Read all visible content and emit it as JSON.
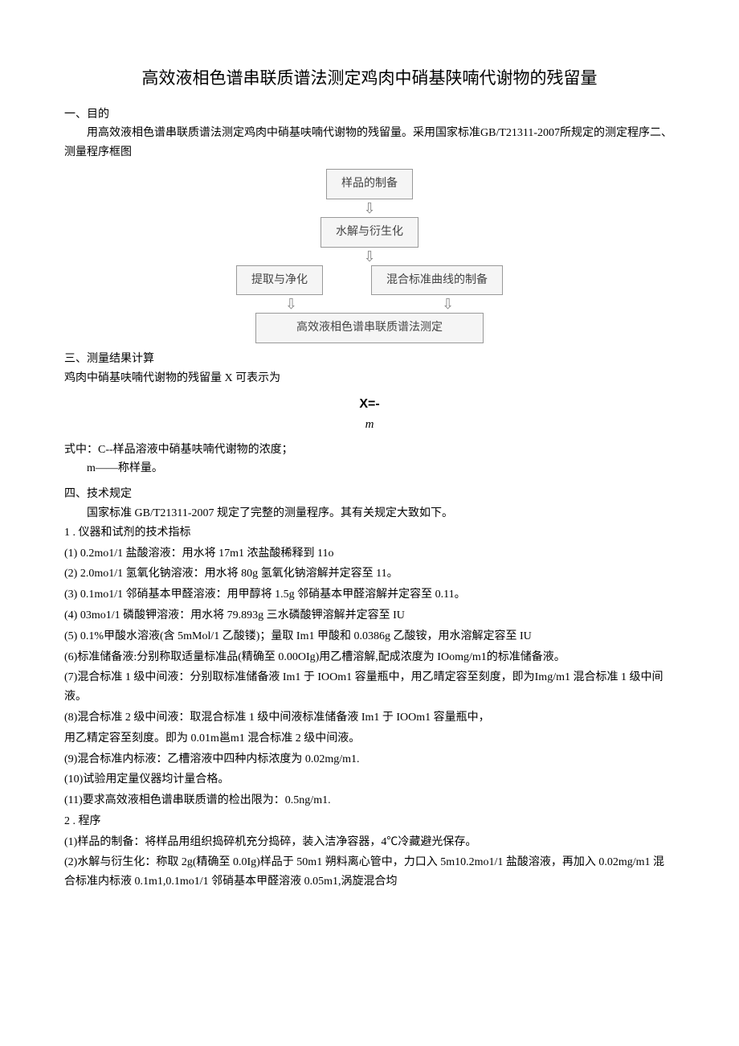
{
  "title": "高效液相色谱串联质谱法测定鸡肉中硝基陕喃代谢物的残留量",
  "sec1": {
    "hdr": "一、目的",
    "p1": "用高效液相色谱串联质谱法测定鸡肉中硝基呋喃代谢物的残留量。采用国家标准GB/T21311-2007所规定的测定程序二、测量程序框图"
  },
  "flow": {
    "b1": "样品的制备",
    "b2": "水解与衍生化",
    "b3": "提取与净化",
    "b4": "混合标准曲线的制备",
    "b5": "高效液相色谱串联质谱法测定",
    "arrow": "⇩"
  },
  "sec3": {
    "hdr": "三、测量结果计算",
    "p1": "鸡肉中硝基呋喃代谢物的残留量 X 可表示为",
    "formula_x": "X=-",
    "formula_m": "m",
    "p2": "式中：C--样品溶液中硝基呋喃代谢物的浓度；",
    "p3": "m——称样量。"
  },
  "sec4": {
    "hdr": "四、技术规定",
    "p1": "国家标准 GB/T21311-2007 规定了完整的测量程序。其有关规定大致如下。",
    "sub1": "1  . 仪器和试剂的技术指标",
    "items": [
      "(1)    0.2mo1/1 盐酸溶液：用水将 17m1 浓盐酸稀释到 11o",
      "(2)    2.0mo1/1 氢氧化钠溶液：用水将 80g 氢氧化钠溶解并定容至 11。",
      "(3)    0.1mo1/1 邻硝基本甲醛溶液：用甲醇将 1.5g 邻硝基本甲醛溶解并定容至 0.11。",
      "(4)    03mo1/1 磷酸钾溶液：用水将 79.893g 三水磷酸钾溶解并定容至 IU",
      "(5)     0.1%甲酸水溶液(含 5mMol/1 乙酸镂)；量取 Im1 甲酸和 0.0386g 乙酸铵，用水溶解定容至 IU"
    ],
    "p6": "(6)标准储备液:分别称取适量标准品(精确至 0.00OIg)用乙槽溶解,配成浓度为 IOomg/m1的标准储备液。",
    "p7": "(7)混合标准 1 级中间液：分别取标准储备液 Im1 于 IOOm1 容量瓶中，用乙晴定容至刻度，即为Img/m1 混合标准 1 级中间液。",
    "p8": "(8)混合标准 2 级中间液：取混合标准 1 级中间液标准储备液 Im1 于 IOOm1 容量瓶中，",
    "p8b": "用乙精定容至刻度。即为 0.01m邕m1 混合标准 2 级中间液。",
    "p9": "(9)混合标准内标液：乙槽溶液中四种内标浓度为 0.02mg/m1.",
    "p10": "(10)试验用定量仪器均计量合格。",
    "p11": "(11)要求高效液相色谱串联质谱的检出限为：0.5ng/m1.",
    "sub2": "2    . 程序",
    "q1": "(1)样品的制备：将样品用组织捣碎机充分捣碎，装入洁净容器，4℃冷藏避光保存。",
    "q2": "(2)水解与衍生化：称取 2g(精确至 0.0Ig)样品于 50m1 朔料离心管中，力口入 5m10.2mo1/1 盐酸溶液，再加入 0.02mg/m1 混合标准内标液 0.1m1,0.1mo1/1 邻硝基本甲醛溶液 0.05m1,涡旋混合均"
  }
}
